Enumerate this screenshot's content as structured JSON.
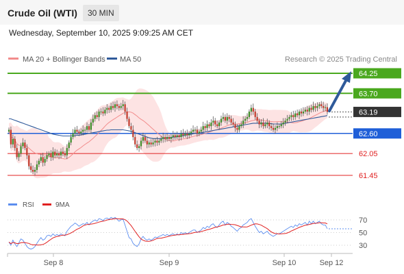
{
  "header": {
    "instrument": "Crude Oil (WTI)",
    "timeframe": "30 MIN",
    "datetime": "Wednesday, September 10, 2025 9:09:25 AM CET"
  },
  "legend": {
    "ma20": {
      "label": "MA 20 + Bollinger Bands",
      "color": "#f28c8c"
    },
    "ma50": {
      "label": "MA 50",
      "color": "#2f5a9a"
    },
    "credit": "Research © 2025 Trading Central"
  },
  "rsi_legend": {
    "rsi": {
      "label": "RSI",
      "color": "#5b8def"
    },
    "ma9": {
      "label": "9MA",
      "color": "#e02020"
    }
  },
  "chart_data": [
    {
      "type": "candlestick",
      "ylim": [
        61.15,
        64.4
      ],
      "x_labels": [
        "Sep 8",
        "Sep 9",
        "Sep 10",
        "Sep 12"
      ],
      "current_price": {
        "value": "63.19",
        "color": "#333333"
      },
      "levels": [
        {
          "value": 64.25,
          "label": "64.25",
          "style": "resistance-filled",
          "color": "#4aa81e"
        },
        {
          "value": 63.7,
          "label": "63.70",
          "style": "resistance-filled",
          "color": "#4aa81e"
        },
        {
          "value": 62.6,
          "label": "62.60",
          "style": "pivot-filled",
          "color": "#1f5fd8"
        },
        {
          "value": 62.05,
          "label": "62.05",
          "style": "support-text",
          "color": "#e02020"
        },
        {
          "value": 61.45,
          "label": "61.45",
          "style": "support-text",
          "color": "#e02020"
        }
      ],
      "close": [
        62.7,
        62.3,
        62.45,
        62.2,
        61.95,
        62.05,
        62.25,
        62.35,
        62.2,
        62.0,
        61.7,
        61.6,
        61.55,
        61.6,
        61.75,
        61.85,
        61.95,
        61.8,
        61.9,
        62.0,
        62.05,
        61.95,
        62.1,
        62.0,
        62.05,
        62.0,
        62.1,
        62.05,
        62.0,
        62.2,
        62.35,
        62.5,
        62.6,
        62.7,
        62.65,
        62.6,
        62.65,
        62.7,
        62.7,
        62.8,
        62.7,
        62.9,
        63.0,
        63.1,
        63.05,
        63.2,
        63.2,
        63.15,
        63.25,
        63.3,
        63.25,
        63.35,
        63.3,
        63.4,
        63.35,
        63.3,
        63.35,
        63.4,
        63.2,
        63.0,
        62.8,
        62.7,
        62.5,
        62.3,
        62.2,
        62.25,
        62.4,
        62.5,
        62.4,
        62.3,
        62.35,
        62.3,
        62.35,
        62.4,
        62.35,
        62.4,
        62.45,
        62.5,
        62.45,
        62.5,
        62.45,
        62.5,
        62.55,
        62.5,
        62.55,
        62.5,
        62.6,
        62.55,
        62.6,
        62.55,
        62.6,
        62.65,
        62.7,
        62.7,
        62.6,
        62.65,
        62.7,
        62.8,
        62.75,
        62.85,
        62.8,
        62.9,
        62.95,
        62.85,
        62.8,
        62.9,
        63.0,
        63.05,
        62.95,
        63.05,
        63.0,
        62.9,
        62.85,
        62.75,
        62.7,
        62.8,
        62.85,
        62.95,
        63.0,
        63.05,
        63.2,
        63.3,
        63.2,
        63.05,
        62.95,
        62.85,
        62.9,
        62.8,
        62.85,
        62.9,
        62.8,
        62.75,
        62.7,
        62.75,
        62.8,
        62.8,
        62.85,
        62.9,
        62.95,
        63.0,
        63.05,
        63.1,
        63.05,
        63.15,
        63.1,
        63.2,
        63.15,
        63.2,
        63.25,
        63.2,
        63.3,
        63.25,
        63.35,
        63.3,
        63.35,
        63.4,
        63.35,
        63.3,
        63.32,
        63.19
      ],
      "ma50": [
        63.0,
        63.0,
        62.98,
        62.96,
        62.94,
        62.92,
        62.9,
        62.88,
        62.86,
        62.84,
        62.82,
        62.8,
        62.78,
        62.76,
        62.74,
        62.72,
        62.7,
        62.68,
        62.66,
        62.64,
        62.62,
        62.6,
        62.58,
        62.57,
        62.56,
        62.55,
        62.54,
        62.53,
        62.53,
        62.53,
        62.53,
        62.53,
        62.54,
        62.54,
        62.55,
        62.55,
        62.56,
        62.57,
        62.58,
        62.59,
        62.6,
        62.61,
        62.62,
        62.63,
        62.64,
        62.65,
        62.66,
        62.67,
        62.68,
        62.69,
        62.69,
        62.7,
        62.7,
        62.7,
        62.7,
        62.7,
        62.7,
        62.7,
        62.69,
        62.68,
        62.67,
        62.66,
        62.64,
        62.62,
        62.6,
        62.58,
        62.56,
        62.54,
        62.52,
        62.5,
        62.48,
        62.47,
        62.46,
        62.46,
        62.46,
        62.46,
        62.46,
        62.47,
        62.47,
        62.48,
        62.48,
        62.49,
        62.5,
        62.5,
        62.51,
        62.52,
        62.53,
        62.54,
        62.55,
        62.56,
        62.57,
        62.58,
        62.59,
        62.6,
        62.6,
        62.61,
        62.62,
        62.63,
        62.64,
        62.65,
        62.66,
        62.67,
        62.68,
        62.69,
        62.7,
        62.71,
        62.72,
        62.73,
        62.74,
        62.75,
        62.76,
        62.77,
        62.78,
        62.79,
        62.8,
        62.81,
        62.82,
        62.83,
        62.84,
        62.85,
        62.86,
        62.87,
        62.88,
        62.88,
        62.88,
        62.88,
        62.88,
        62.88,
        62.88,
        62.88,
        62.87,
        62.87,
        62.86,
        62.86,
        62.86,
        62.86,
        62.86,
        62.87,
        62.88,
        62.89,
        62.9,
        62.91,
        62.92,
        62.93,
        62.94,
        62.95,
        62.96,
        62.97,
        62.98,
        62.99,
        63.0,
        63.01,
        63.02,
        63.03,
        63.04,
        63.05,
        63.06,
        63.07,
        63.08,
        63.09
      ],
      "rsi": [
        35,
        30,
        38,
        32,
        28,
        34,
        40,
        38,
        33,
        28,
        25,
        24,
        25,
        28,
        33,
        38,
        42,
        38,
        40,
        45,
        46,
        44,
        48,
        45,
        47,
        45,
        48,
        46,
        45,
        52,
        56,
        60,
        62,
        65,
        63,
        60,
        62,
        64,
        63,
        66,
        62,
        66,
        68,
        70,
        68,
        72,
        71,
        69,
        72,
        73,
        71,
        74,
        72,
        74,
        71,
        68,
        70,
        71,
        62,
        52,
        42,
        40,
        33,
        30,
        28,
        32,
        40,
        44,
        40,
        38,
        40,
        38,
        40,
        43,
        42,
        44,
        45,
        47,
        45,
        47,
        45,
        47,
        48,
        46,
        48,
        46,
        50,
        48,
        50,
        48,
        50,
        52,
        54,
        54,
        50,
        52,
        54,
        58,
        56,
        60,
        58,
        62,
        64,
        60,
        58,
        62,
        66,
        68,
        62,
        66,
        64,
        60,
        58,
        55,
        52,
        56,
        58,
        62,
        64,
        66,
        70,
        72,
        66,
        60,
        55,
        50,
        52,
        48,
        50,
        52,
        48,
        46,
        44,
        46,
        48,
        48,
        50,
        52,
        54,
        56,
        58,
        60,
        58,
        62,
        60,
        64,
        62,
        64,
        66,
        62,
        68,
        64,
        68,
        64,
        66,
        68,
        64,
        62,
        62,
        56
      ],
      "rsi_ticks": [
        "70",
        "50",
        "30"
      ],
      "rsi_ylim": [
        15,
        82
      ]
    }
  ]
}
